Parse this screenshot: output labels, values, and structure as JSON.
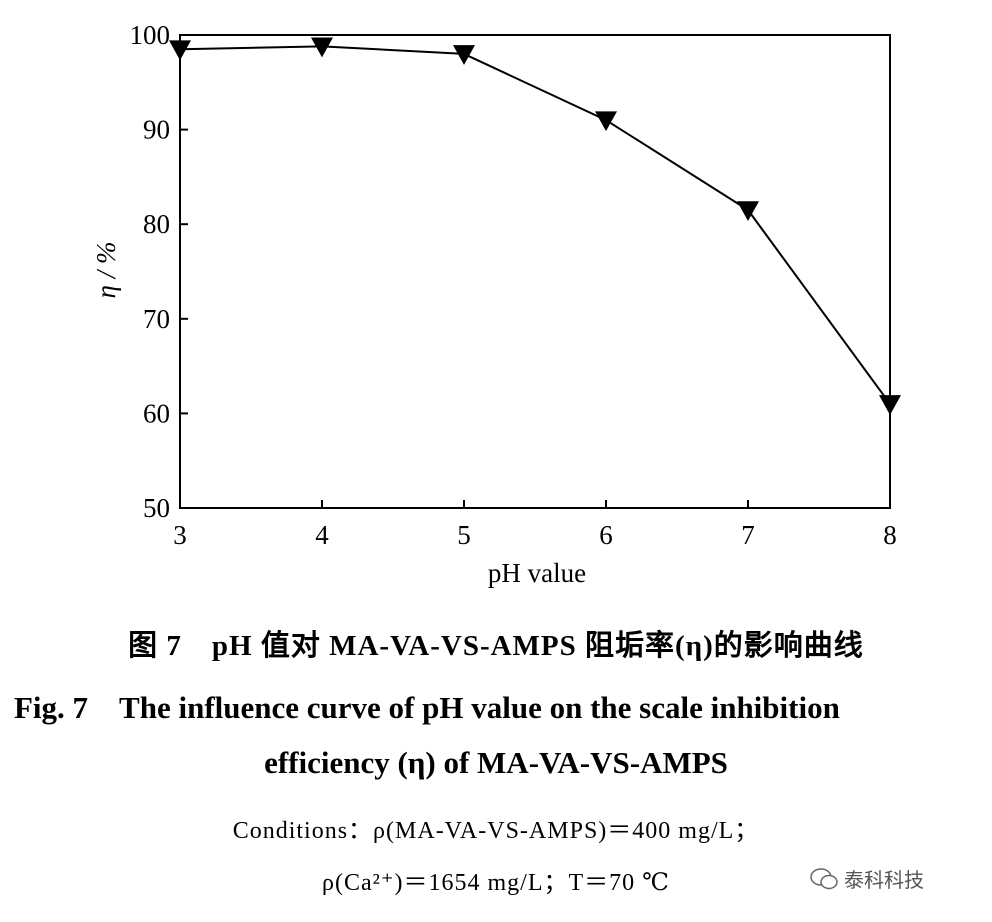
{
  "chart_data": {
    "type": "line",
    "x": [
      3,
      4,
      5,
      6,
      7,
      8
    ],
    "series": [
      {
        "values": [
          98.5,
          98.8,
          98.0,
          91.0,
          81.5,
          61.0
        ]
      }
    ],
    "xlabel": "pH value",
    "ylabel": "η / %",
    "xlim": [
      3,
      8
    ],
    "ylim": [
      50,
      100
    ],
    "xticks": [
      "3",
      "4",
      "5",
      "6",
      "7",
      "8"
    ],
    "yticks": [
      "50",
      "60",
      "70",
      "80",
      "90",
      "100"
    ],
    "marker": "down-triangle",
    "grid": false,
    "line_color": "#000000"
  },
  "caption": {
    "cn": "图 7　pH 值对 MA-VA-VS-AMPS 阻垢率(η)的影响曲线",
    "en_line1": "Fig. 7　The influence curve of pH value on the scale inhibition",
    "en_line2": "efficiency (η) of MA-VA-VS-AMPS",
    "conditions_line1": "Conditions：ρ(MA-VA-VS-AMPS)＝400 mg/L；",
    "conditions_line2": "ρ(Ca²⁺)＝1654 mg/L；T＝70 ℃"
  },
  "watermark": {
    "text": "泰科科技",
    "icon": "wechat-icon"
  }
}
